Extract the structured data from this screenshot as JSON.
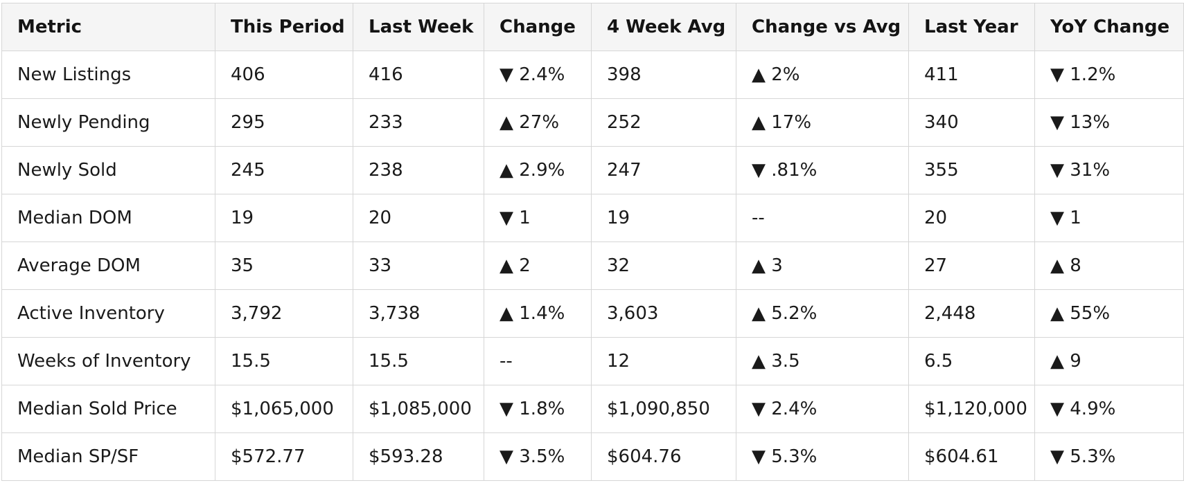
{
  "table": {
    "headers": [
      "Metric",
      "This Period",
      "Last Week",
      "Change",
      "4 Week Avg",
      "Change vs Avg",
      "Last Year",
      "YoY Change"
    ],
    "rows": [
      [
        "New Listings",
        "406",
        "416",
        "▼ 2.4%",
        "398",
        "▲ 2%",
        "411",
        "▼ 1.2%"
      ],
      [
        "Newly Pending",
        "295",
        "233",
        "▲ 27%",
        "252",
        "▲ 17%",
        "340",
        "▼ 13%"
      ],
      [
        "Newly Sold",
        "245",
        "238",
        "▲ 2.9%",
        "247",
        "▼ .81%",
        "355",
        "▼ 31%"
      ],
      [
        "Median DOM",
        "19",
        "20",
        "▼ 1",
        "19",
        "--",
        "20",
        "▼ 1"
      ],
      [
        "Average DOM",
        "35",
        "33",
        "▲ 2",
        "32",
        "▲ 3",
        "27",
        "▲ 8"
      ],
      [
        "Active Inventory",
        "3,792",
        "3,738",
        "▲ 1.4%",
        "3,603",
        "▲ 5.2%",
        "2,448",
        "▲ 55%"
      ],
      [
        "Weeks of Inventory",
        "15.5",
        "15.5",
        "--",
        "12",
        "▲ 3.5",
        "6.5",
        "▲ 9"
      ],
      [
        "Median Sold Price",
        "$1,065,000",
        "$1,085,000",
        "▼ 1.8%",
        "$1,090,850",
        "▼ 2.4%",
        "$1,120,000",
        "▼ 4.9%"
      ],
      [
        "Median SP/SF",
        "$572.77",
        "$593.28",
        "▼ 3.5%",
        "$604.76",
        "▼ 5.3%",
        "$604.61",
        "▼ 5.3%"
      ]
    ]
  }
}
